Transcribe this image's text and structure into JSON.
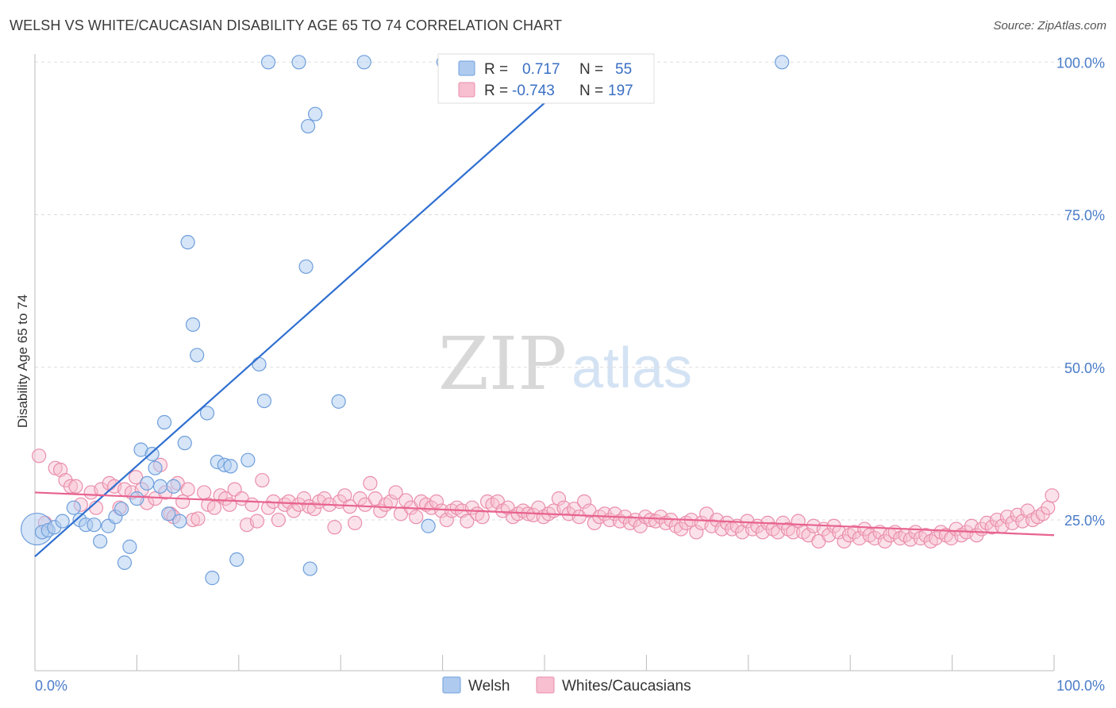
{
  "title": "WELSH VS WHITE/CAUCASIAN DISABILITY AGE 65 TO 74 CORRELATION CHART",
  "source": "Source: ZipAtlas.com",
  "watermark": {
    "zip": "ZIP",
    "atlas": "atlas"
  },
  "colors": {
    "welsh_fill": "#aecbef",
    "welsh_stroke": "#6f9fdc",
    "welsh_line": "#2f6fd0",
    "white_fill": "#f7bfd0",
    "white_stroke": "#ea8eac",
    "white_line": "#e8638f",
    "grid": "#dddddd",
    "tick_text": "#4a7cc9"
  },
  "legend": {
    "rows": [
      {
        "r_label": "R =",
        "r_value": "0.717",
        "n_label": "N =",
        "n_value": "55"
      },
      {
        "r_label": "R =",
        "r_value": "-0.743",
        "n_label": "N =",
        "n_value": "197"
      }
    ]
  },
  "chart_data": {
    "type": "scatter",
    "title": "WELSH VS WHITE/CAUCASIAN DISABILITY AGE 65 TO 74 CORRELATION CHART",
    "xlabel": "",
    "ylabel": "Disability Age 65 to 74",
    "xlim": [
      0,
      100
    ],
    "ylim": [
      0,
      102
    ],
    "x_tick_labels": [
      "0.0%",
      "100.0%"
    ],
    "y_ticks": [
      25,
      50,
      75,
      100
    ],
    "y_tick_labels": [
      "25.0%",
      "50.0%",
      "75.0%",
      "100.0%"
    ],
    "grid": "horizontal dashed",
    "legend_position": "top-center",
    "series": [
      {
        "name": "Welsh",
        "r": 0.717,
        "n": 55,
        "trend": [
          [
            0,
            19.0
          ],
          [
            54.5,
            100
          ]
        ],
        "points": [
          [
            0.2,
            23.5
          ],
          [
            0.7,
            23.0
          ],
          [
            1.3,
            23.3
          ],
          [
            1.9,
            23.8
          ],
          [
            2.7,
            24.8
          ],
          [
            3.8,
            27.0
          ],
          [
            4.4,
            25.0
          ],
          [
            5.0,
            24.2
          ],
          [
            5.8,
            24.2
          ],
          [
            6.4,
            21.5
          ],
          [
            7.2,
            24.0
          ],
          [
            7.9,
            25.5
          ],
          [
            8.5,
            26.8
          ],
          [
            8.8,
            18.0
          ],
          [
            9.3,
            20.6
          ],
          [
            10.0,
            28.5
          ],
          [
            10.4,
            36.5
          ],
          [
            11.0,
            31.0
          ],
          [
            11.5,
            35.8
          ],
          [
            11.8,
            33.5
          ],
          [
            12.3,
            30.5
          ],
          [
            12.7,
            41.0
          ],
          [
            13.1,
            26.0
          ],
          [
            13.6,
            30.5
          ],
          [
            14.2,
            24.8
          ],
          [
            14.7,
            37.6
          ],
          [
            15.0,
            70.5
          ],
          [
            15.5,
            57.0
          ],
          [
            15.9,
            52.0
          ],
          [
            16.9,
            42.5
          ],
          [
            17.4,
            15.5
          ],
          [
            17.9,
            34.5
          ],
          [
            18.6,
            34.0
          ],
          [
            19.2,
            33.8
          ],
          [
            19.8,
            18.5
          ],
          [
            20.9,
            34.8
          ],
          [
            22.0,
            50.5
          ],
          [
            22.5,
            44.5
          ],
          [
            22.9,
            100
          ],
          [
            25.9,
            100
          ],
          [
            26.6,
            66.5
          ],
          [
            27.0,
            17.0
          ],
          [
            26.8,
            89.5
          ],
          [
            27.5,
            91.5
          ],
          [
            29.8,
            44.4
          ],
          [
            32.3,
            100
          ],
          [
            38.6,
            24.0
          ],
          [
            40.1,
            100
          ],
          [
            54.0,
            100
          ],
          [
            54.5,
            100
          ],
          [
            73.3,
            100
          ]
        ]
      },
      {
        "name": "Whites/Caucasians",
        "r": -0.743,
        "n": 197,
        "trend": [
          [
            0,
            29.5
          ],
          [
            100,
            22.5
          ]
        ],
        "points": [
          [
            0.4,
            35.5
          ],
          [
            2.0,
            33.5
          ],
          [
            2.5,
            33.2
          ],
          [
            3.0,
            31.5
          ],
          [
            3.5,
            30.5
          ],
          [
            4.0,
            30.5
          ],
          [
            4.5,
            27.5
          ],
          [
            5.5,
            29.5
          ],
          [
            6.0,
            27.0
          ],
          [
            6.5,
            30.0
          ],
          [
            7.3,
            31.0
          ],
          [
            7.8,
            30.5
          ],
          [
            8.3,
            27.0
          ],
          [
            8.8,
            30.0
          ],
          [
            9.5,
            29.5
          ],
          [
            9.9,
            32.0
          ],
          [
            10.5,
            30.0
          ],
          [
            11.0,
            27.8
          ],
          [
            11.8,
            28.5
          ],
          [
            12.3,
            34.0
          ],
          [
            12.8,
            29.5
          ],
          [
            13.3,
            26.0
          ],
          [
            13.6,
            25.5
          ],
          [
            14.0,
            31.0
          ],
          [
            14.5,
            28.0
          ],
          [
            15.0,
            30.0
          ],
          [
            15.5,
            25.0
          ],
          [
            16.0,
            25.2
          ],
          [
            16.6,
            29.5
          ],
          [
            17.0,
            27.5
          ],
          [
            17.6,
            27.0
          ],
          [
            18.2,
            29.0
          ],
          [
            18.7,
            28.5
          ],
          [
            19.1,
            27.5
          ],
          [
            19.6,
            30.0
          ],
          [
            20.3,
            28.5
          ],
          [
            20.8,
            24.2
          ],
          [
            21.3,
            27.5
          ],
          [
            21.8,
            24.8
          ],
          [
            22.3,
            31.5
          ],
          [
            22.9,
            27.0
          ],
          [
            23.4,
            28.0
          ],
          [
            23.9,
            25.0
          ],
          [
            24.5,
            27.5
          ],
          [
            24.9,
            28.0
          ],
          [
            25.4,
            26.5
          ],
          [
            25.9,
            27.5
          ],
          [
            26.4,
            28.5
          ],
          [
            26.9,
            27.2
          ],
          [
            27.4,
            26.8
          ],
          [
            27.9,
            28.0
          ],
          [
            28.4,
            28.5
          ],
          [
            28.9,
            27.5
          ],
          [
            29.4,
            23.8
          ],
          [
            29.9,
            28.0
          ],
          [
            30.4,
            29.0
          ],
          [
            30.9,
            27.2
          ],
          [
            31.4,
            24.5
          ],
          [
            31.9,
            28.5
          ],
          [
            32.4,
            27.5
          ],
          [
            32.9,
            31.0
          ],
          [
            33.4,
            28.5
          ],
          [
            33.9,
            26.5
          ],
          [
            34.4,
            27.5
          ],
          [
            34.9,
            28.0
          ],
          [
            35.4,
            29.5
          ],
          [
            35.9,
            26.0
          ],
          [
            36.4,
            28.2
          ],
          [
            36.9,
            27.0
          ],
          [
            37.4,
            25.5
          ],
          [
            37.9,
            28.0
          ],
          [
            38.4,
            27.5
          ],
          [
            38.9,
            27.0
          ],
          [
            39.4,
            28.0
          ],
          [
            39.9,
            26.5
          ],
          [
            40.4,
            25.0
          ],
          [
            40.9,
            26.5
          ],
          [
            41.4,
            27.0
          ],
          [
            41.9,
            26.5
          ],
          [
            42.4,
            24.8
          ],
          [
            42.9,
            27.0
          ],
          [
            43.4,
            26.0
          ],
          [
            43.9,
            25.5
          ],
          [
            44.4,
            28.0
          ],
          [
            44.9,
            27.5
          ],
          [
            45.4,
            28.0
          ],
          [
            45.9,
            26.5
          ],
          [
            46.4,
            27.0
          ],
          [
            46.9,
            25.5
          ],
          [
            47.4,
            26.0
          ],
          [
            47.9,
            26.5
          ],
          [
            48.4,
            26.0
          ],
          [
            48.9,
            25.8
          ],
          [
            49.4,
            27.0
          ],
          [
            49.9,
            25.5
          ],
          [
            50.4,
            26.0
          ],
          [
            50.9,
            26.5
          ],
          [
            51.4,
            28.5
          ],
          [
            51.9,
            27.0
          ],
          [
            52.4,
            26.0
          ],
          [
            52.9,
            26.8
          ],
          [
            53.4,
            25.5
          ],
          [
            53.9,
            28.0
          ],
          [
            54.4,
            26.5
          ],
          [
            54.9,
            24.5
          ],
          [
            55.4,
            25.5
          ],
          [
            55.9,
            26.0
          ],
          [
            56.4,
            25.0
          ],
          [
            56.9,
            26.0
          ],
          [
            57.4,
            24.8
          ],
          [
            57.9,
            25.5
          ],
          [
            58.4,
            24.5
          ],
          [
            58.9,
            25.0
          ],
          [
            59.4,
            24.0
          ],
          [
            59.9,
            25.5
          ],
          [
            60.4,
            25.0
          ],
          [
            60.9,
            24.8
          ],
          [
            61.4,
            25.5
          ],
          [
            61.9,
            24.5
          ],
          [
            62.4,
            25.0
          ],
          [
            62.9,
            24.0
          ],
          [
            63.4,
            23.5
          ],
          [
            63.9,
            24.5
          ],
          [
            64.4,
            25.0
          ],
          [
            64.9,
            23.0
          ],
          [
            65.4,
            24.5
          ],
          [
            65.9,
            26.0
          ],
          [
            66.4,
            24.0
          ],
          [
            66.9,
            25.0
          ],
          [
            67.4,
            23.5
          ],
          [
            67.9,
            24.5
          ],
          [
            68.4,
            23.5
          ],
          [
            68.9,
            24.0
          ],
          [
            69.4,
            23.0
          ],
          [
            69.9,
            24.8
          ],
          [
            70.4,
            23.5
          ],
          [
            70.9,
            24.0
          ],
          [
            71.4,
            23.0
          ],
          [
            71.9,
            24.5
          ],
          [
            72.4,
            23.5
          ],
          [
            72.9,
            23.0
          ],
          [
            73.4,
            24.5
          ],
          [
            73.9,
            23.5
          ],
          [
            74.4,
            23.0
          ],
          [
            74.9,
            24.8
          ],
          [
            75.4,
            23.0
          ],
          [
            75.9,
            22.5
          ],
          [
            76.4,
            24.0
          ],
          [
            76.9,
            21.5
          ],
          [
            77.4,
            23.5
          ],
          [
            77.9,
            22.5
          ],
          [
            78.4,
            24.0
          ],
          [
            78.9,
            23.0
          ],
          [
            79.4,
            21.5
          ],
          [
            79.9,
            22.5
          ],
          [
            80.4,
            23.0
          ],
          [
            80.9,
            22.0
          ],
          [
            81.4,
            23.5
          ],
          [
            81.9,
            22.5
          ],
          [
            82.4,
            22.0
          ],
          [
            82.9,
            23.0
          ],
          [
            83.4,
            21.5
          ],
          [
            83.9,
            22.5
          ],
          [
            84.4,
            23.0
          ],
          [
            84.9,
            22.0
          ],
          [
            85.4,
            22.5
          ],
          [
            85.9,
            21.8
          ],
          [
            86.4,
            23.0
          ],
          [
            86.9,
            22.0
          ],
          [
            87.4,
            22.5
          ],
          [
            87.9,
            21.5
          ],
          [
            88.4,
            22.0
          ],
          [
            88.9,
            23.0
          ],
          [
            89.4,
            22.5
          ],
          [
            89.9,
            22.0
          ],
          [
            90.4,
            23.5
          ],
          [
            90.9,
            22.5
          ],
          [
            91.4,
            23.0
          ],
          [
            91.9,
            24.0
          ],
          [
            92.4,
            22.5
          ],
          [
            92.9,
            23.5
          ],
          [
            93.4,
            24.5
          ],
          [
            93.9,
            23.8
          ],
          [
            94.4,
            25.0
          ],
          [
            94.9,
            24.0
          ],
          [
            95.4,
            25.5
          ],
          [
            95.9,
            24.5
          ],
          [
            96.4,
            25.8
          ],
          [
            96.9,
            24.8
          ],
          [
            97.4,
            26.5
          ],
          [
            97.9,
            25.0
          ],
          [
            98.4,
            25.5
          ],
          [
            98.9,
            26.0
          ],
          [
            99.4,
            27.0
          ],
          [
            99.8,
            29.0
          ],
          [
            1.0,
            24.5
          ]
        ]
      }
    ]
  }
}
